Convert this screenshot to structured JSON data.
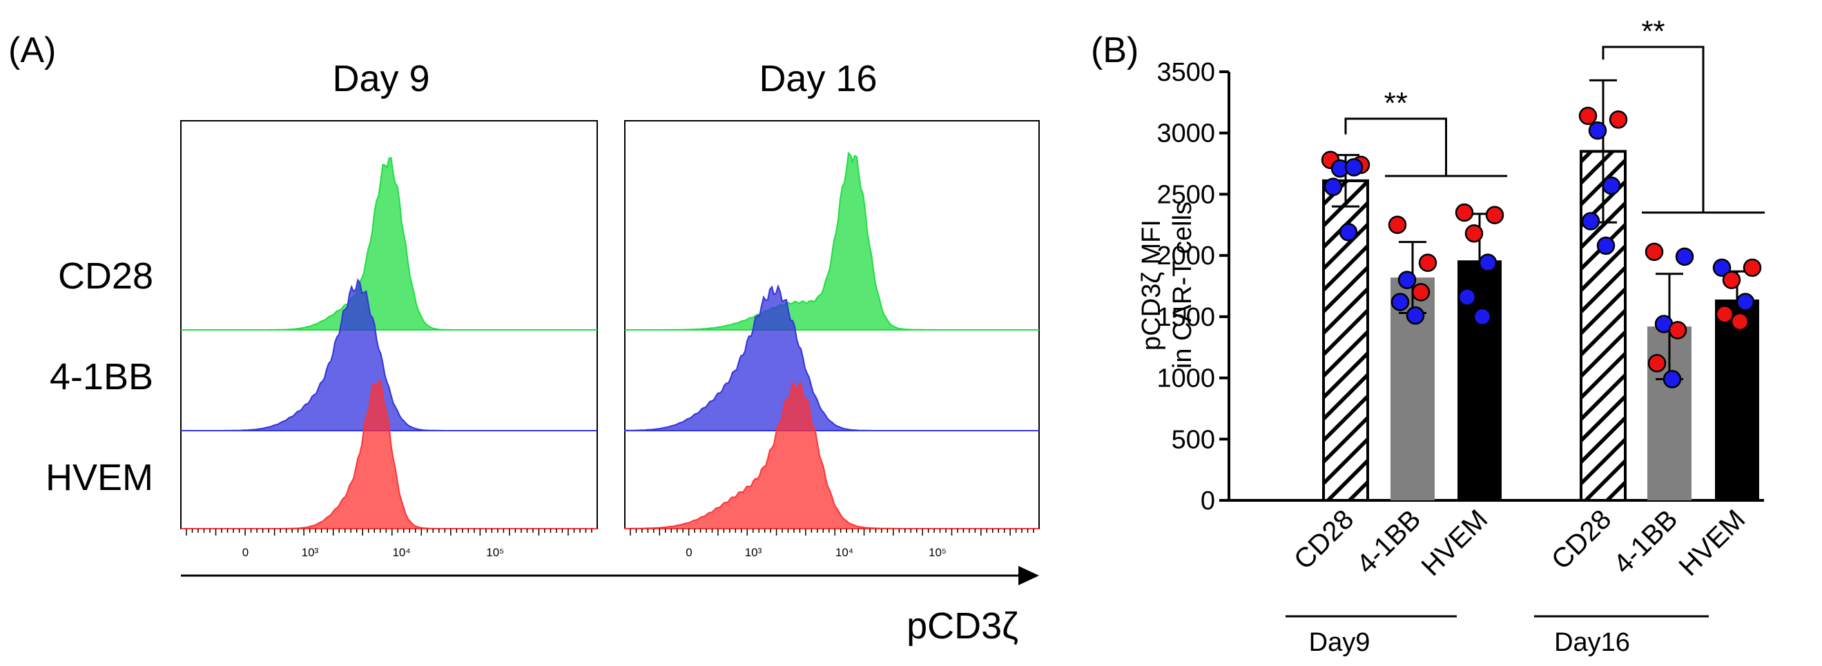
{
  "panel_a": {
    "label": "(A)",
    "columns": [
      "Day 9",
      "Day 16"
    ],
    "rows": [
      "CD28",
      "4-1BB",
      "HVEM"
    ],
    "colors": {
      "CD28": "#22dd44",
      "4-1BB": "#3333dd",
      "HVEM": "#ff3333"
    },
    "tick_labels": [
      "0",
      "10³",
      "10⁴",
      "10⁵"
    ],
    "xlabel": "pCD3ζ"
  },
  "chart_data": {
    "type": "bar",
    "label": "(B)",
    "ylabel_line1": "pCD3ζ MFI",
    "ylabel_line2": "in CAR-T cells",
    "ylim": [
      0,
      3500
    ],
    "yticks": [
      0,
      500,
      1000,
      1500,
      2000,
      2500,
      3000,
      3500
    ],
    "categories": [
      "CD28",
      "4-1BB",
      "HVEM",
      "CD28",
      "4-1BB",
      "HVEM"
    ],
    "groups": [
      {
        "name": "Day9",
        "indices": [
          0,
          1,
          2
        ]
      },
      {
        "name": "Day16",
        "indices": [
          3,
          4,
          5
        ]
      }
    ],
    "bar_styles": [
      "hatched",
      "gray",
      "black",
      "hatched",
      "gray",
      "black"
    ],
    "values": [
      2610,
      1820,
      1960,
      2850,
      1420,
      1640
    ],
    "errors": [
      210,
      290,
      380,
      580,
      430,
      230
    ],
    "points": [
      [
        {
          "v": 2780,
          "c": "red"
        },
        {
          "v": 2740,
          "c": "red"
        },
        {
          "v": 2710,
          "c": "blue"
        },
        {
          "v": 2720,
          "c": "blue"
        },
        {
          "v": 2560,
          "c": "blue"
        },
        {
          "v": 2190,
          "c": "blue"
        }
      ],
      [
        {
          "v": 2250,
          "c": "red"
        },
        {
          "v": 1940,
          "c": "red"
        },
        {
          "v": 1800,
          "c": "blue"
        },
        {
          "v": 1700,
          "c": "red"
        },
        {
          "v": 1620,
          "c": "blue"
        },
        {
          "v": 1510,
          "c": "blue"
        }
      ],
      [
        {
          "v": 2350,
          "c": "red"
        },
        {
          "v": 2330,
          "c": "red"
        },
        {
          "v": 2180,
          "c": "red"
        },
        {
          "v": 1940,
          "c": "blue"
        },
        {
          "v": 1660,
          "c": "blue"
        },
        {
          "v": 1500,
          "c": "blue"
        }
      ],
      [
        {
          "v": 3140,
          "c": "red"
        },
        {
          "v": 3110,
          "c": "red"
        },
        {
          "v": 3020,
          "c": "blue"
        },
        {
          "v": 2570,
          "c": "blue"
        },
        {
          "v": 2280,
          "c": "blue"
        },
        {
          "v": 2080,
          "c": "blue"
        }
      ],
      [
        {
          "v": 2030,
          "c": "red"
        },
        {
          "v": 1990,
          "c": "blue"
        },
        {
          "v": 1440,
          "c": "blue"
        },
        {
          "v": 1390,
          "c": "red"
        },
        {
          "v": 1120,
          "c": "red"
        },
        {
          "v": 990,
          "c": "blue"
        }
      ],
      [
        {
          "v": 1900,
          "c": "blue"
        },
        {
          "v": 1900,
          "c": "red"
        },
        {
          "v": 1800,
          "c": "red"
        },
        {
          "v": 1620,
          "c": "blue"
        },
        {
          "v": 1520,
          "c": "red"
        },
        {
          "v": 1460,
          "c": "red"
        }
      ]
    ],
    "significance": [
      {
        "label": "**",
        "from": 0,
        "to": [
          1,
          2
        ]
      },
      {
        "label": "**",
        "from": 3,
        "to": [
          4,
          5
        ]
      }
    ]
  }
}
